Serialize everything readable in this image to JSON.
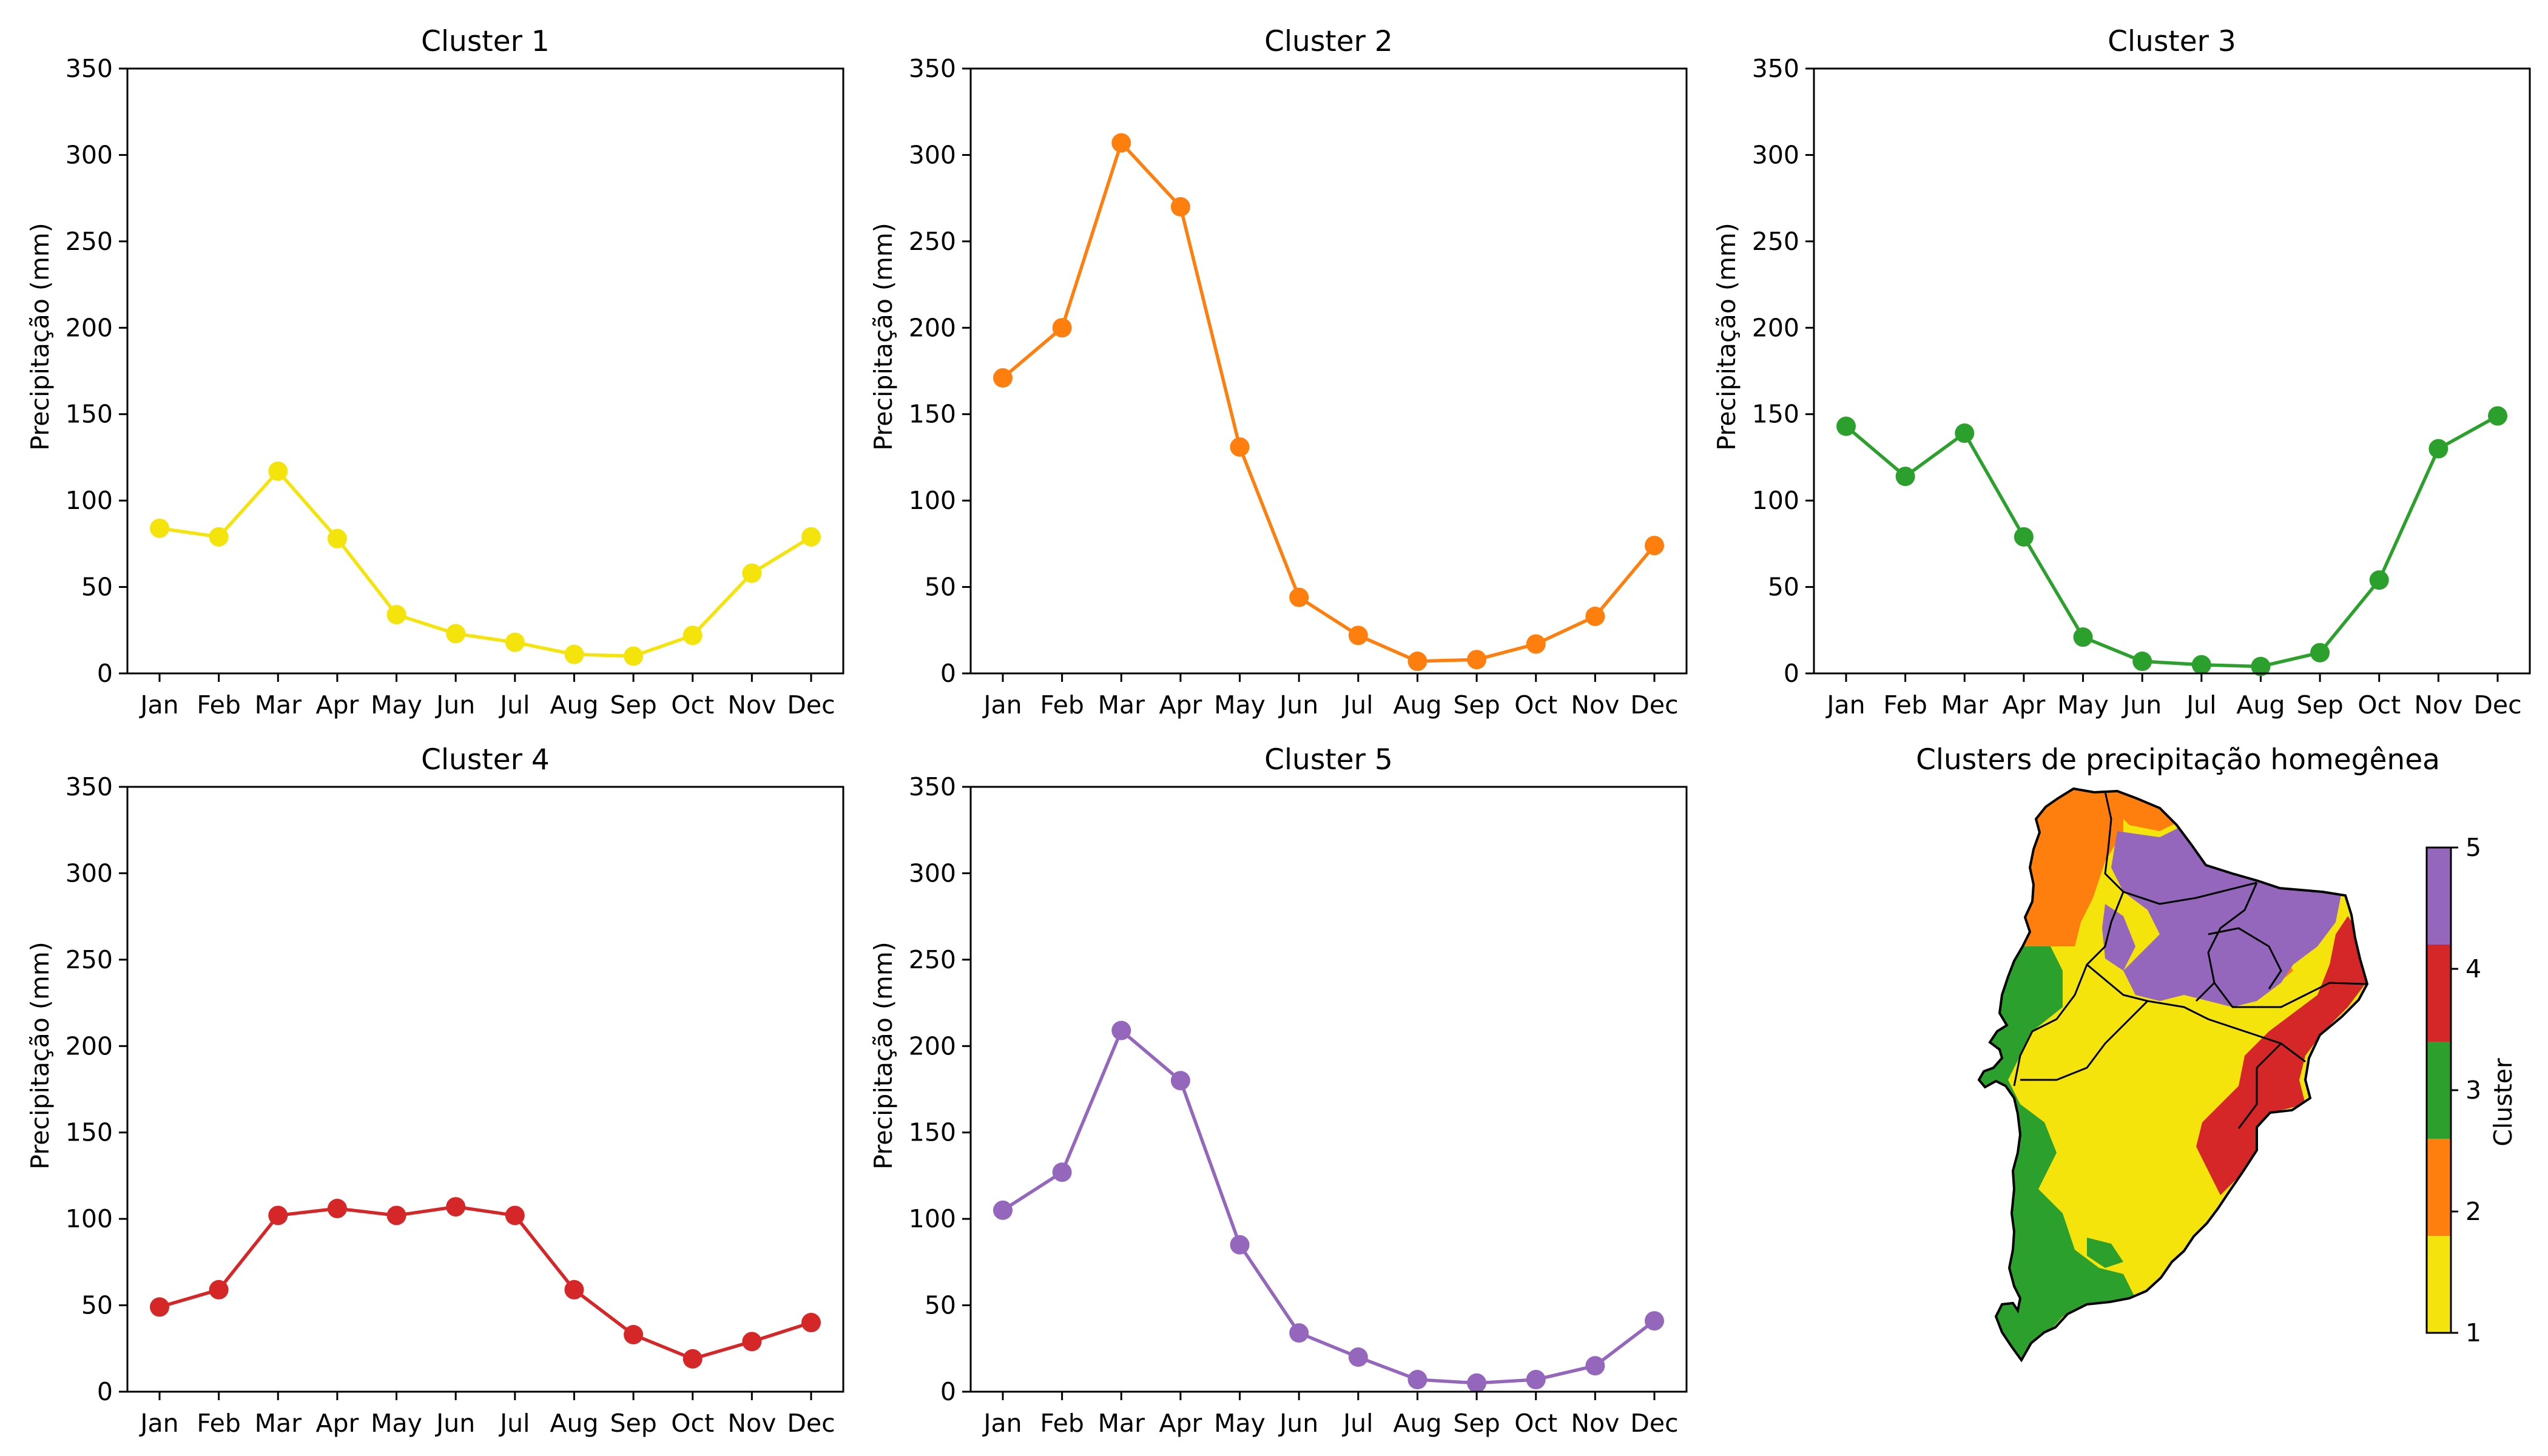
{
  "shared": {
    "ylabel": "Precipitação (mm)",
    "ylim": [
      0,
      350
    ],
    "yticks": [
      0,
      50,
      100,
      150,
      200,
      250,
      300,
      350
    ],
    "months": [
      "Jan",
      "Feb",
      "Mar",
      "Apr",
      "May",
      "Jun",
      "Jul",
      "Aug",
      "Sep",
      "Oct",
      "Nov",
      "Dec"
    ]
  },
  "chart_data": [
    {
      "type": "line",
      "title": "Cluster 1",
      "xlabel": "",
      "ylabel": "Precipitação (mm)",
      "ylim": [
        0,
        350
      ],
      "categories": [
        "Jan",
        "Feb",
        "Mar",
        "Apr",
        "May",
        "Jun",
        "Jul",
        "Aug",
        "Sep",
        "Oct",
        "Nov",
        "Dec"
      ],
      "series": [
        {
          "values": [
            84,
            79,
            117,
            78,
            34,
            23,
            18,
            11,
            10,
            22,
            58,
            79
          ],
          "color": "#f4e40c"
        }
      ],
      "grid": false
    },
    {
      "type": "line",
      "title": "Cluster 2",
      "xlabel": "",
      "ylabel": "Precipitação (mm)",
      "ylim": [
        0,
        350
      ],
      "categories": [
        "Jan",
        "Feb",
        "Mar",
        "Apr",
        "May",
        "Jun",
        "Jul",
        "Aug",
        "Sep",
        "Oct",
        "Nov",
        "Dec"
      ],
      "series": [
        {
          "values": [
            171,
            200,
            307,
            270,
            131,
            44,
            22,
            7,
            8,
            17,
            33,
            74
          ],
          "color": "#ff7f0e"
        }
      ],
      "grid": false
    },
    {
      "type": "line",
      "title": "Cluster 3",
      "xlabel": "",
      "ylabel": "Precipitação (mm)",
      "ylim": [
        0,
        350
      ],
      "categories": [
        "Jan",
        "Feb",
        "Mar",
        "Apr",
        "May",
        "Jun",
        "Jul",
        "Aug",
        "Sep",
        "Oct",
        "Nov",
        "Dec"
      ],
      "series": [
        {
          "values": [
            143,
            114,
            139,
            79,
            21,
            7,
            5,
            4,
            12,
            54,
            130,
            149
          ],
          "color": "#2ca02c"
        }
      ],
      "grid": false
    },
    {
      "type": "line",
      "title": "Cluster 4",
      "xlabel": "",
      "ylabel": "Precipitação (mm)",
      "ylim": [
        0,
        350
      ],
      "categories": [
        "Jan",
        "Feb",
        "Mar",
        "Apr",
        "May",
        "Jun",
        "Jul",
        "Aug",
        "Sep",
        "Oct",
        "Nov",
        "Dec"
      ],
      "series": [
        {
          "values": [
            49,
            59,
            102,
            106,
            102,
            107,
            102,
            59,
            33,
            19,
            29,
            40
          ],
          "color": "#d62728"
        }
      ],
      "grid": false
    },
    {
      "type": "line",
      "title": "Cluster 5",
      "xlabel": "",
      "ylabel": "Precipitação (mm)",
      "ylim": [
        0,
        350
      ],
      "categories": [
        "Jan",
        "Feb",
        "Mar",
        "Apr",
        "May",
        "Jun",
        "Jul",
        "Aug",
        "Sep",
        "Oct",
        "Nov",
        "Dec"
      ],
      "series": [
        {
          "values": [
            105,
            127,
            209,
            180,
            85,
            34,
            20,
            7,
            5,
            7,
            15,
            41
          ],
          "color": "#9467bd"
        }
      ],
      "grid": false
    },
    {
      "type": "heatmap",
      "title": "Clusters de precipitação homegênea",
      "colorbar": {
        "label": "Cluster",
        "ticks": [
          1,
          2,
          3,
          4,
          5
        ],
        "colors": [
          "#f4e40c",
          "#ff7f0e",
          "#2ca02c",
          "#d62728",
          "#9467bd"
        ]
      }
    }
  ]
}
